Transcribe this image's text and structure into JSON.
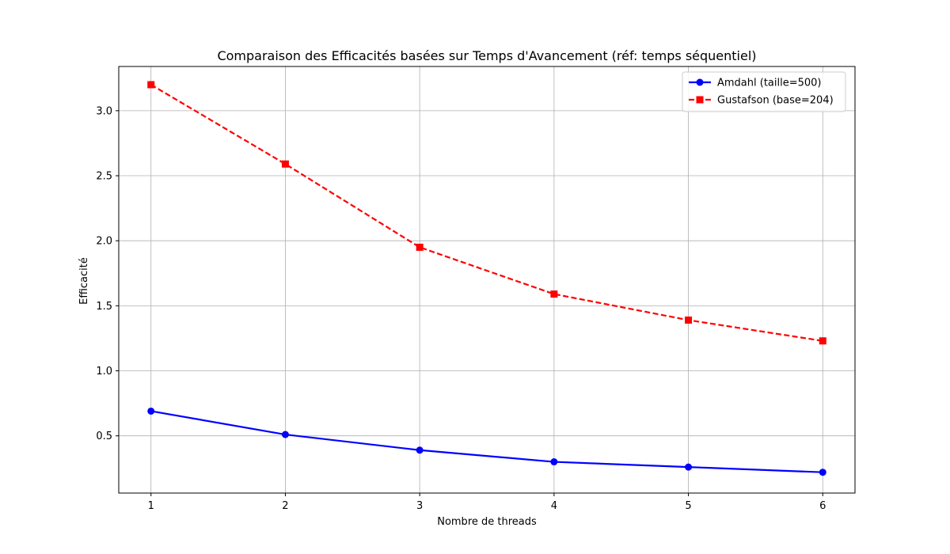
{
  "chart_data": {
    "type": "line",
    "title": "Comparaison des Efficacités basées sur Temps d'Avancement (réf: temps séquentiel)",
    "xlabel": "Nombre de threads",
    "ylabel": "Efficacité",
    "x": [
      1,
      2,
      3,
      4,
      5,
      6
    ],
    "x_ticks": [
      "1",
      "2",
      "3",
      "4",
      "5",
      "6"
    ],
    "y_ticks": [
      "0.5",
      "1.0",
      "1.5",
      "2.0",
      "2.5",
      "3.0"
    ],
    "xlim": [
      0.76,
      6.24
    ],
    "ylim": [
      0.06,
      3.34
    ],
    "grid": true,
    "legend_position": "top-right",
    "series": [
      {
        "name": "Amdahl (taille=500)",
        "values": [
          0.69,
          0.51,
          0.39,
          0.3,
          0.26,
          0.22
        ],
        "color": "#0000ff",
        "line_style": "solid",
        "marker": "circle"
      },
      {
        "name": "Gustafson (base=204)",
        "values": [
          3.2,
          2.59,
          1.95,
          1.59,
          1.39,
          1.23
        ],
        "color": "#ff0000",
        "line_style": "dashed",
        "marker": "square"
      }
    ]
  }
}
